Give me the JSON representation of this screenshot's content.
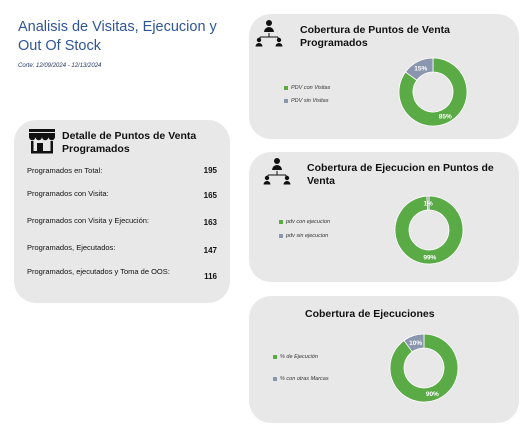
{
  "header": {
    "title": "Analisis de Visitas, Ejecucion y Out Of Stock",
    "corte": "Corte: 12/09/2024 - 12/13/2024"
  },
  "detalle": {
    "title": "Detalle de Puntos de Venta Programados",
    "icon": "store-icon",
    "rows": [
      {
        "label": "Programados en Total:",
        "value": "195"
      },
      {
        "label": "Programados con Visita:",
        "value": "165"
      },
      {
        "label": "Programados con Visita y Ejecución:",
        "value": "163"
      },
      {
        "label": "Programados,  Ejecutados:",
        "value": "147"
      },
      {
        "label": "Programados,  ejecutados y Toma de OOS:",
        "value": "116"
      }
    ]
  },
  "colors": {
    "green": "#5aaa46",
    "gray": "#8a96ad"
  },
  "chart_data": [
    {
      "type": "pie",
      "title": "Cobertura de Puntos de Venta Programados",
      "labels": [
        "PDV con Visitas",
        "PDV sin Visitas"
      ],
      "values": [
        85,
        15
      ],
      "value_labels": [
        "85%",
        "15%"
      ],
      "colors": [
        "#5aaa46",
        "#8a96ad"
      ],
      "legend": "left",
      "icon": "team-hierarchy-icon"
    },
    {
      "type": "pie",
      "title": "Cobertura de Ejecucion en Puntos de Venta",
      "labels": [
        "pdv con ejecucion",
        "pdv sin ejecucion"
      ],
      "values": [
        99,
        1
      ],
      "value_labels": [
        "99%",
        "1%"
      ],
      "colors": [
        "#5aaa46",
        "#8a96ad"
      ],
      "legend": "left",
      "icon": "team-hierarchy-icon"
    },
    {
      "type": "pie",
      "title": "Cobertura de Ejecuciones",
      "labels": [
        "% de Ejecución",
        "% con otras Marcas"
      ],
      "values": [
        90,
        10
      ],
      "value_labels": [
        "90%",
        "10%"
      ],
      "colors": [
        "#5aaa46",
        "#8a96ad"
      ],
      "legend": "left"
    }
  ]
}
